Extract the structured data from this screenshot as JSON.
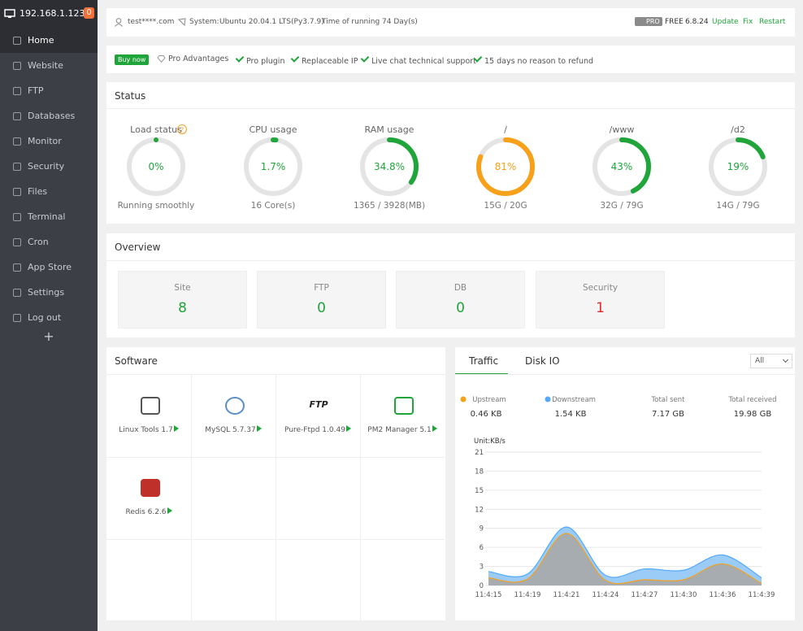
{
  "sidebar": {
    "host": "192.168.1.123",
    "badge": "0",
    "menu": [
      "Home",
      "Website",
      "FTP",
      "Databases",
      "Monitor",
      "Security",
      "Files",
      "Terminal",
      "Cron",
      "App Store",
      "Settings",
      "Log out"
    ],
    "add": "+"
  },
  "header": {
    "user": "test****.com",
    "system_label": "System:",
    "system": "Ubuntu 20.04.1 LTS(Py3.7.9)",
    "uptime": "Time of running 74 Day(s)",
    "pro_badge": "PRO",
    "edition": "FREE",
    "version": "6.8.24",
    "actions": [
      "Update",
      "Fix",
      "Restart"
    ]
  },
  "promo": {
    "button": "Buy now",
    "items": [
      "Pro Advantages",
      "Pro plugin",
      "Replaceable IP",
      "Live chat technical support",
      "15 days no reason to refund"
    ]
  },
  "status": {
    "title": "Status",
    "gauges": [
      {
        "label": "Load status",
        "help": "?",
        "value": 0,
        "value_label": "0%",
        "detail": "Running smoothly",
        "color": "#20a53a"
      },
      {
        "label": "CPU usage",
        "value": 1.7,
        "value_label": "1.7%",
        "detail": "16 Core(s)",
        "color": "#20a53a"
      },
      {
        "label": "RAM usage",
        "value": 34.8,
        "value_label": "34.8%",
        "detail": "1365 / 3928(MB)",
        "color": "#20a53a"
      },
      {
        "label": "/",
        "value": 81,
        "value_label": "81%",
        "detail": "15G / 20G",
        "color": "#f7a11a"
      },
      {
        "label": "/www",
        "value": 43,
        "value_label": "43%",
        "detail": "32G / 79G",
        "color": "#20a53a"
      },
      {
        "label": "/d2",
        "value": 19,
        "value_label": "19%",
        "detail": "14G / 79G",
        "color": "#20a53a"
      }
    ]
  },
  "overview": {
    "title": "Overview",
    "cards": [
      {
        "label": "Site",
        "value": 8,
        "color": "#20a53a"
      },
      {
        "label": "FTP",
        "value": 0,
        "color": "#20a53a"
      },
      {
        "label": "DB",
        "value": 0,
        "color": "#20a53a"
      },
      {
        "label": "Security",
        "value": 1,
        "color": "#e02b2b"
      }
    ]
  },
  "software": {
    "title": "Software",
    "items": [
      {
        "name": "Linux Tools 1.7"
      },
      {
        "name": "MySQL 5.7.37"
      },
      {
        "name": "Pure-Ftpd 1.0.49",
        "logo": "FTP"
      },
      {
        "name": "PM2 Manager 5.1"
      },
      {
        "name": "Redis 6.2.6"
      }
    ]
  },
  "traffic": {
    "tabs": [
      "Traffic",
      "Disk IO"
    ],
    "filter": "All",
    "stats": [
      {
        "label": "Upstream",
        "value": "0.46 KB"
      },
      {
        "label": "Downstream",
        "value": "1.54 KB"
      },
      {
        "label": "Total sent",
        "value": "7.17 GB"
      },
      {
        "label": "Total received",
        "value": "19.98 GB"
      }
    ],
    "chart": {
      "type": "area",
      "unit": "Unit:KB/s",
      "categories": [
        "11:4:15",
        "11:4:19",
        "11:4:21",
        "11:4:24",
        "11:4:27",
        "11:4:30",
        "11:4:36",
        "11:4:39"
      ],
      "ylim": [
        0,
        21
      ],
      "yticks": [
        0,
        3,
        6,
        9,
        12,
        15,
        18,
        21
      ],
      "grid": true,
      "series": [
        {
          "color": "#f7a11a",
          "values": [
            1.2,
            1.0,
            8.2,
            0.8,
            0.9,
            0.9,
            3.4,
            0.3
          ]
        },
        {
          "color": "#52a9ff",
          "values": [
            2.2,
            1.8,
            9.2,
            1.6,
            2.6,
            2.4,
            4.8,
            1.2
          ]
        }
      ]
    }
  }
}
